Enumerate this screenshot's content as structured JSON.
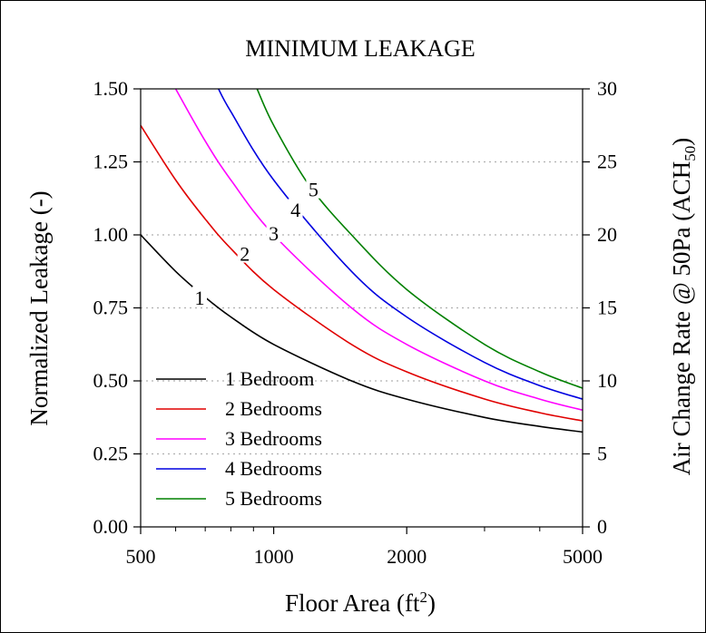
{
  "chart_data": {
    "type": "line",
    "title": "MINIMUM LEAKAGE",
    "xlabel": "Floor Area (ft",
    "xlabel_sup": "2",
    "xlabel_close": ")",
    "xscale": "log",
    "xlim": [
      500,
      5000
    ],
    "xticks": [
      {
        "value": 500,
        "label": "500"
      },
      {
        "value": 1000,
        "label": "1000"
      },
      {
        "value": 2000,
        "label": "2000"
      },
      {
        "value": 5000,
        "label": "5000"
      }
    ],
    "xminor_ticks": [
      600,
      700,
      800,
      900,
      3000,
      4000
    ],
    "ylabel_left": "Normalized Leakage (-)",
    "ylim_left": [
      0,
      1.5
    ],
    "yticks_left": [
      "0.00",
      "0.25",
      "0.50",
      "0.75",
      "1.00",
      "1.25",
      "1.50"
    ],
    "ylabel_right": "Air Change Rate @ 50Pa (ACH",
    "ylabel_right_sub": "50",
    "ylabel_right_close": ")",
    "ylim_right": [
      0,
      30
    ],
    "yticks_right": [
      "0",
      "5",
      "10",
      "15",
      "20",
      "25",
      "30"
    ],
    "grid": "horizontal dotted",
    "legend_position": "bottom-left",
    "series": [
      {
        "name": "1 Bedroom",
        "color": "#000000",
        "curve_label": "1",
        "x": [
          500,
          600,
          700,
          800,
          1000,
          1500,
          2000,
          3000,
          4000,
          5000
        ],
        "y": [
          1.0,
          0.875,
          0.786,
          0.719,
          0.625,
          0.5,
          0.4375,
          0.375,
          0.344,
          0.325
        ]
      },
      {
        "name": "2 Bedrooms",
        "color": "#e00000",
        "curve_label": "2",
        "x": [
          500,
          600,
          700,
          800,
          1000,
          1500,
          2000,
          3000,
          4000,
          5000
        ],
        "y": [
          1.375,
          1.188,
          1.054,
          0.953,
          0.813,
          0.625,
          0.531,
          0.438,
          0.391,
          0.363
        ]
      },
      {
        "name": "3 Bedrooms",
        "color": "#ff00ff",
        "curve_label": "3",
        "x": [
          600,
          700,
          800,
          1000,
          1500,
          2000,
          3000,
          4000,
          5000
        ],
        "y": [
          1.5,
          1.321,
          1.188,
          1.0,
          0.75,
          0.625,
          0.5,
          0.4375,
          0.4
        ]
      },
      {
        "name": "4 Bedrooms",
        "color": "#0000e0",
        "curve_label": "4",
        "x": [
          750,
          800,
          1000,
          1500,
          2000,
          3000,
          4000,
          5000
        ],
        "y": [
          1.5,
          1.422,
          1.188,
          0.875,
          0.719,
          0.563,
          0.484,
          0.4375
        ]
      },
      {
        "name": "5 Bedrooms",
        "color": "#008000",
        "curve_label": "5",
        "x": [
          917,
          1000,
          1200,
          1500,
          2000,
          3000,
          4000,
          5000
        ],
        "y": [
          1.5,
          1.375,
          1.172,
          1.0,
          0.813,
          0.625,
          0.531,
          0.475
        ]
      }
    ],
    "curve_label_positions": [
      {
        "x": 680,
        "y": 0.78
      },
      {
        "x": 860,
        "y": 0.93
      },
      {
        "x": 1000,
        "y": 1.0
      },
      {
        "x": 1120,
        "y": 1.08
      },
      {
        "x": 1230,
        "y": 1.15
      }
    ]
  }
}
